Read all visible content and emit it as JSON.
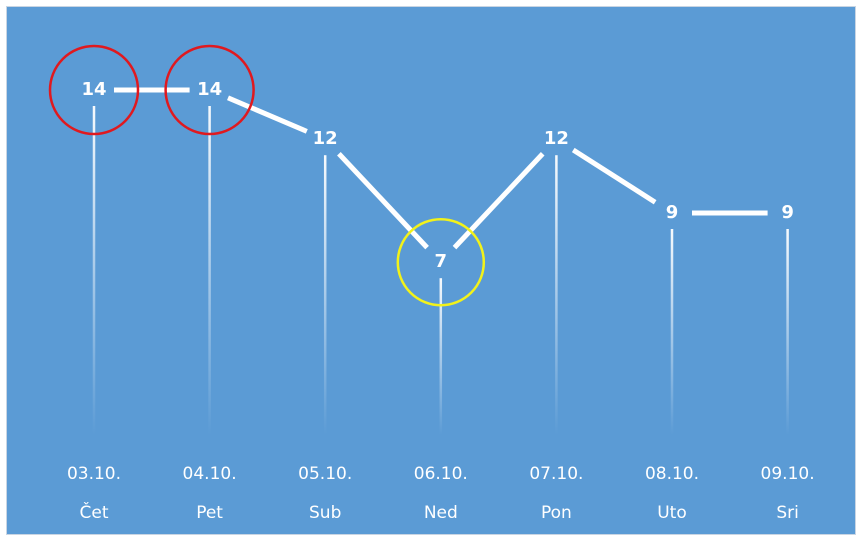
{
  "chart_data": {
    "type": "line",
    "categories": [
      "03.10.",
      "04.10.",
      "05.10.",
      "06.10.",
      "07.10.",
      "08.10.",
      "09.10."
    ],
    "day_labels": [
      "Čet",
      "Pet",
      "Sub",
      "Ned",
      "Pon",
      "Uto",
      "Sri"
    ],
    "values": [
      14,
      14,
      12,
      7,
      12,
      9,
      9
    ],
    "highlight_max_indices": [
      0,
      1
    ],
    "highlight_min_indices": [
      3
    ],
    "data_labels": true,
    "grid": false,
    "title": "",
    "xlabel": "",
    "ylabel": ""
  },
  "colors": {
    "background": "#5b9bd5",
    "line": "#ffffff",
    "text": "#ffffff",
    "max_circle": "#e0191f",
    "min_circle": "#f2f21a"
  }
}
